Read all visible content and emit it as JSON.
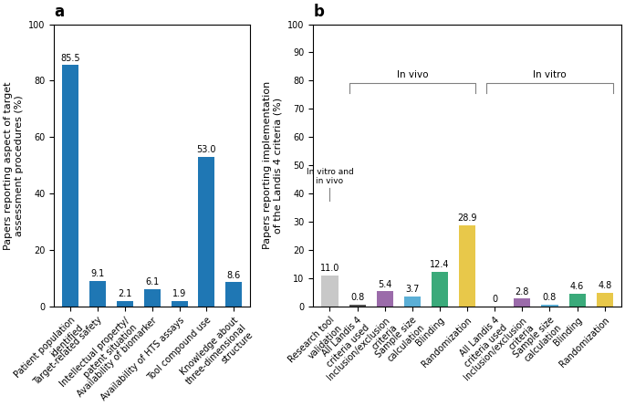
{
  "chart_data": [
    {
      "type": "bar",
      "title": "a",
      "categories": [
        "Patient population\nidentified",
        "Target-related safety",
        "Intellectual property/\npatent situation",
        "Availability of biomarker",
        "Availability of HTS assays",
        "Tool compound use",
        "Knowledge about\nthree-dimensional\nstructure"
      ],
      "values": [
        85.5,
        9.1,
        2.1,
        6.1,
        1.9,
        53.0,
        8.6
      ],
      "y_label": "Papers reporting aspect of target\nassessment procedures (%)",
      "ylim": [
        0,
        100
      ],
      "yticks": [
        0,
        20,
        40,
        60,
        80,
        100
      ],
      "data_labels": true,
      "grid": false
    },
    {
      "type": "bar",
      "title": "b",
      "categories": [
        "Research tool\nvalidation",
        "All Landis 4\ncriteria used",
        "Inclusion/exclusion\ncriteria",
        "Sample size\ncalculation",
        "Blinding",
        "Randomization",
        "All Landis 4\ncriteria used",
        "Inclusion/exclusion\ncriteria",
        "Sample size\ncalculation",
        "Blinding",
        "Randomization"
      ],
      "values": [
        11.0,
        0.8,
        5.4,
        3.7,
        12.4,
        28.9,
        0,
        2.8,
        0.8,
        4.6,
        4.8
      ],
      "colors": [
        "#c8c8c8",
        "#555555",
        "#9b6baa",
        "#5bafd6",
        "#3aaa7a",
        "#e8c84a",
        "#555555",
        "#9b6baa",
        "#5bafd6",
        "#3aaa7a",
        "#e8c84a"
      ],
      "y_label": "Papers reporting implementation\nof the Landis 4 criteria (%)",
      "ylim": [
        0,
        100
      ],
      "yticks": [
        0,
        10,
        20,
        30,
        40,
        50,
        60,
        70,
        80,
        90,
        100
      ],
      "data_labels": true,
      "grid": false,
      "annotations": [
        {
          "text": "In vivo",
          "from": 1,
          "to": 5
        },
        {
          "text": "In vitro",
          "from": 6,
          "to": 10
        },
        {
          "text": "In vitro and\nin vivo",
          "from": 0,
          "to": 0
        }
      ]
    }
  ]
}
